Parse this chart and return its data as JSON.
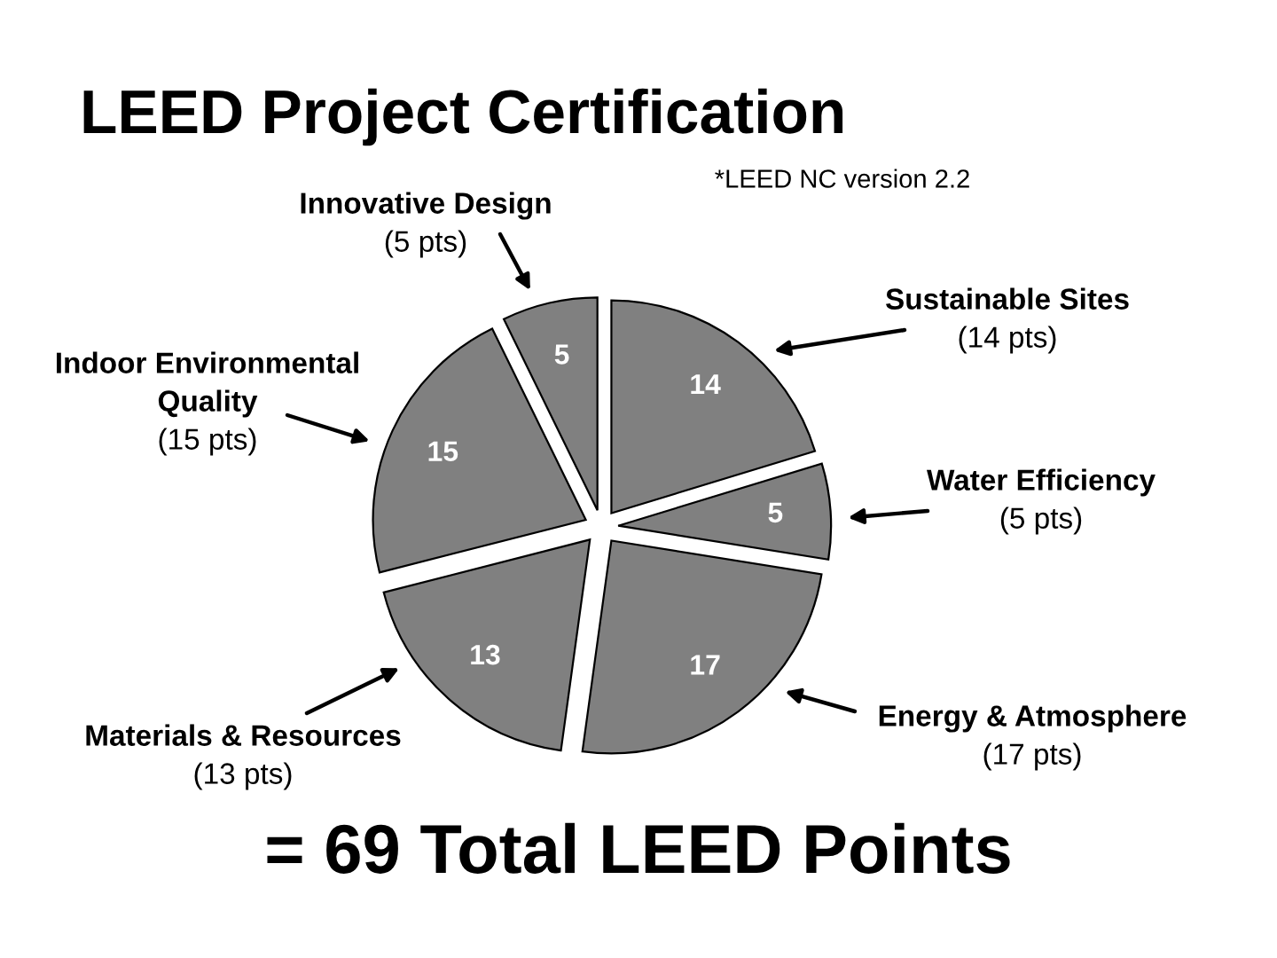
{
  "chart_data": {
    "type": "pie",
    "title": "LEED Project Certification",
    "categories": [
      "Sustainable Sites\n(14 pts)",
      "Water Efficiency\n(5 pts)",
      "Energy & Atmosphere\n(17 pts)",
      "Materials & Resources\n(13 pts)",
      "Indoor Environmental\nQuality\n(15 pts)",
      "Innovative Design\n(5 pts)"
    ],
    "values": [
      14,
      5,
      17,
      13,
      15,
      5
    ],
    "colors": [
      "#808080",
      "#808080",
      "#808080",
      "#808080",
      "#808080",
      "#808080"
    ],
    "data_labels": true,
    "annotations": [
      "*LEED NC version 2.2",
      "= 69 Total LEED Points"
    ]
  }
}
